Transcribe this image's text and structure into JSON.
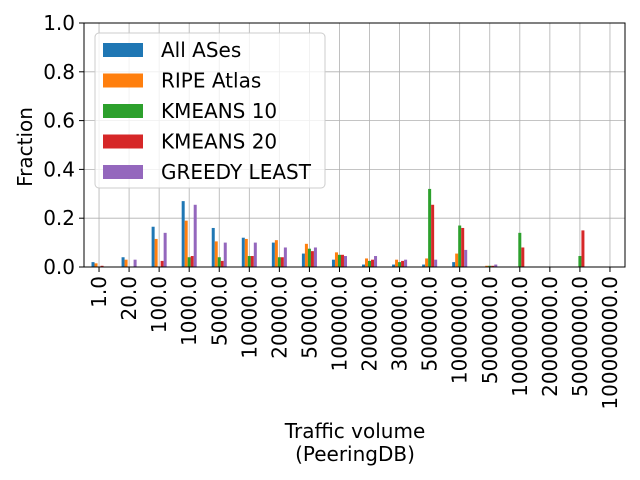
{
  "chart_data": {
    "type": "bar",
    "title": "",
    "xlabel": "Traffic volume",
    "xlabel_line2": "(PeeringDB)",
    "ylabel": "Fraction",
    "ylim": [
      0,
      1.0
    ],
    "yticks": [
      0.0,
      0.2,
      0.4,
      0.6,
      0.8,
      1.0
    ],
    "ytick_labels": [
      "0.0",
      "0.2",
      "0.4",
      "0.6",
      "0.8",
      "1.0"
    ],
    "grid": true,
    "legend_position": "top-left",
    "categories": [
      "1.0",
      "20.0",
      "100.0",
      "1000.0",
      "5000.0",
      "10000.0",
      "20000.0",
      "50000.0",
      "100000.0",
      "200000.0",
      "300000.0",
      "500000.0",
      "1000000.0",
      "5000000.0",
      "10000000.0",
      "20000000.0",
      "50000000.0",
      "100000000.0"
    ],
    "series": [
      {
        "name": "All ASes",
        "color": "#1f77b4",
        "values": [
          0.02,
          0.04,
          0.165,
          0.27,
          0.16,
          0.12,
          0.1,
          0.055,
          0.03,
          0.01,
          0.01,
          0.01,
          0.02,
          0.002,
          0.002,
          0.0,
          0.001,
          0.0
        ]
      },
      {
        "name": "RIPE Atlas",
        "color": "#ff7f0e",
        "values": [
          0.015,
          0.03,
          0.115,
          0.19,
          0.105,
          0.115,
          0.11,
          0.095,
          0.06,
          0.035,
          0.03,
          0.035,
          0.055,
          0.005,
          0.002,
          0.0,
          0.001,
          0.0
        ]
      },
      {
        "name": "KMEANS 10",
        "color": "#2ca02c",
        "values": [
          0.0,
          0.0,
          0.0,
          0.04,
          0.04,
          0.045,
          0.04,
          0.075,
          0.05,
          0.025,
          0.02,
          0.32,
          0.17,
          0.005,
          0.14,
          0.0,
          0.045,
          0.0
        ]
      },
      {
        "name": "KMEANS 20",
        "color": "#d62728",
        "values": [
          0.005,
          0.0,
          0.025,
          0.045,
          0.025,
          0.045,
          0.04,
          0.065,
          0.05,
          0.03,
          0.025,
          0.255,
          0.16,
          0.005,
          0.08,
          0.0,
          0.15,
          0.0
        ]
      },
      {
        "name": "GREEDY LEAST",
        "color": "#9467bd",
        "values": [
          0.0,
          0.03,
          0.14,
          0.255,
          0.1,
          0.1,
          0.08,
          0.08,
          0.045,
          0.045,
          0.03,
          0.03,
          0.07,
          0.01,
          0.0,
          0.0,
          0.0,
          0.0
        ]
      }
    ]
  }
}
